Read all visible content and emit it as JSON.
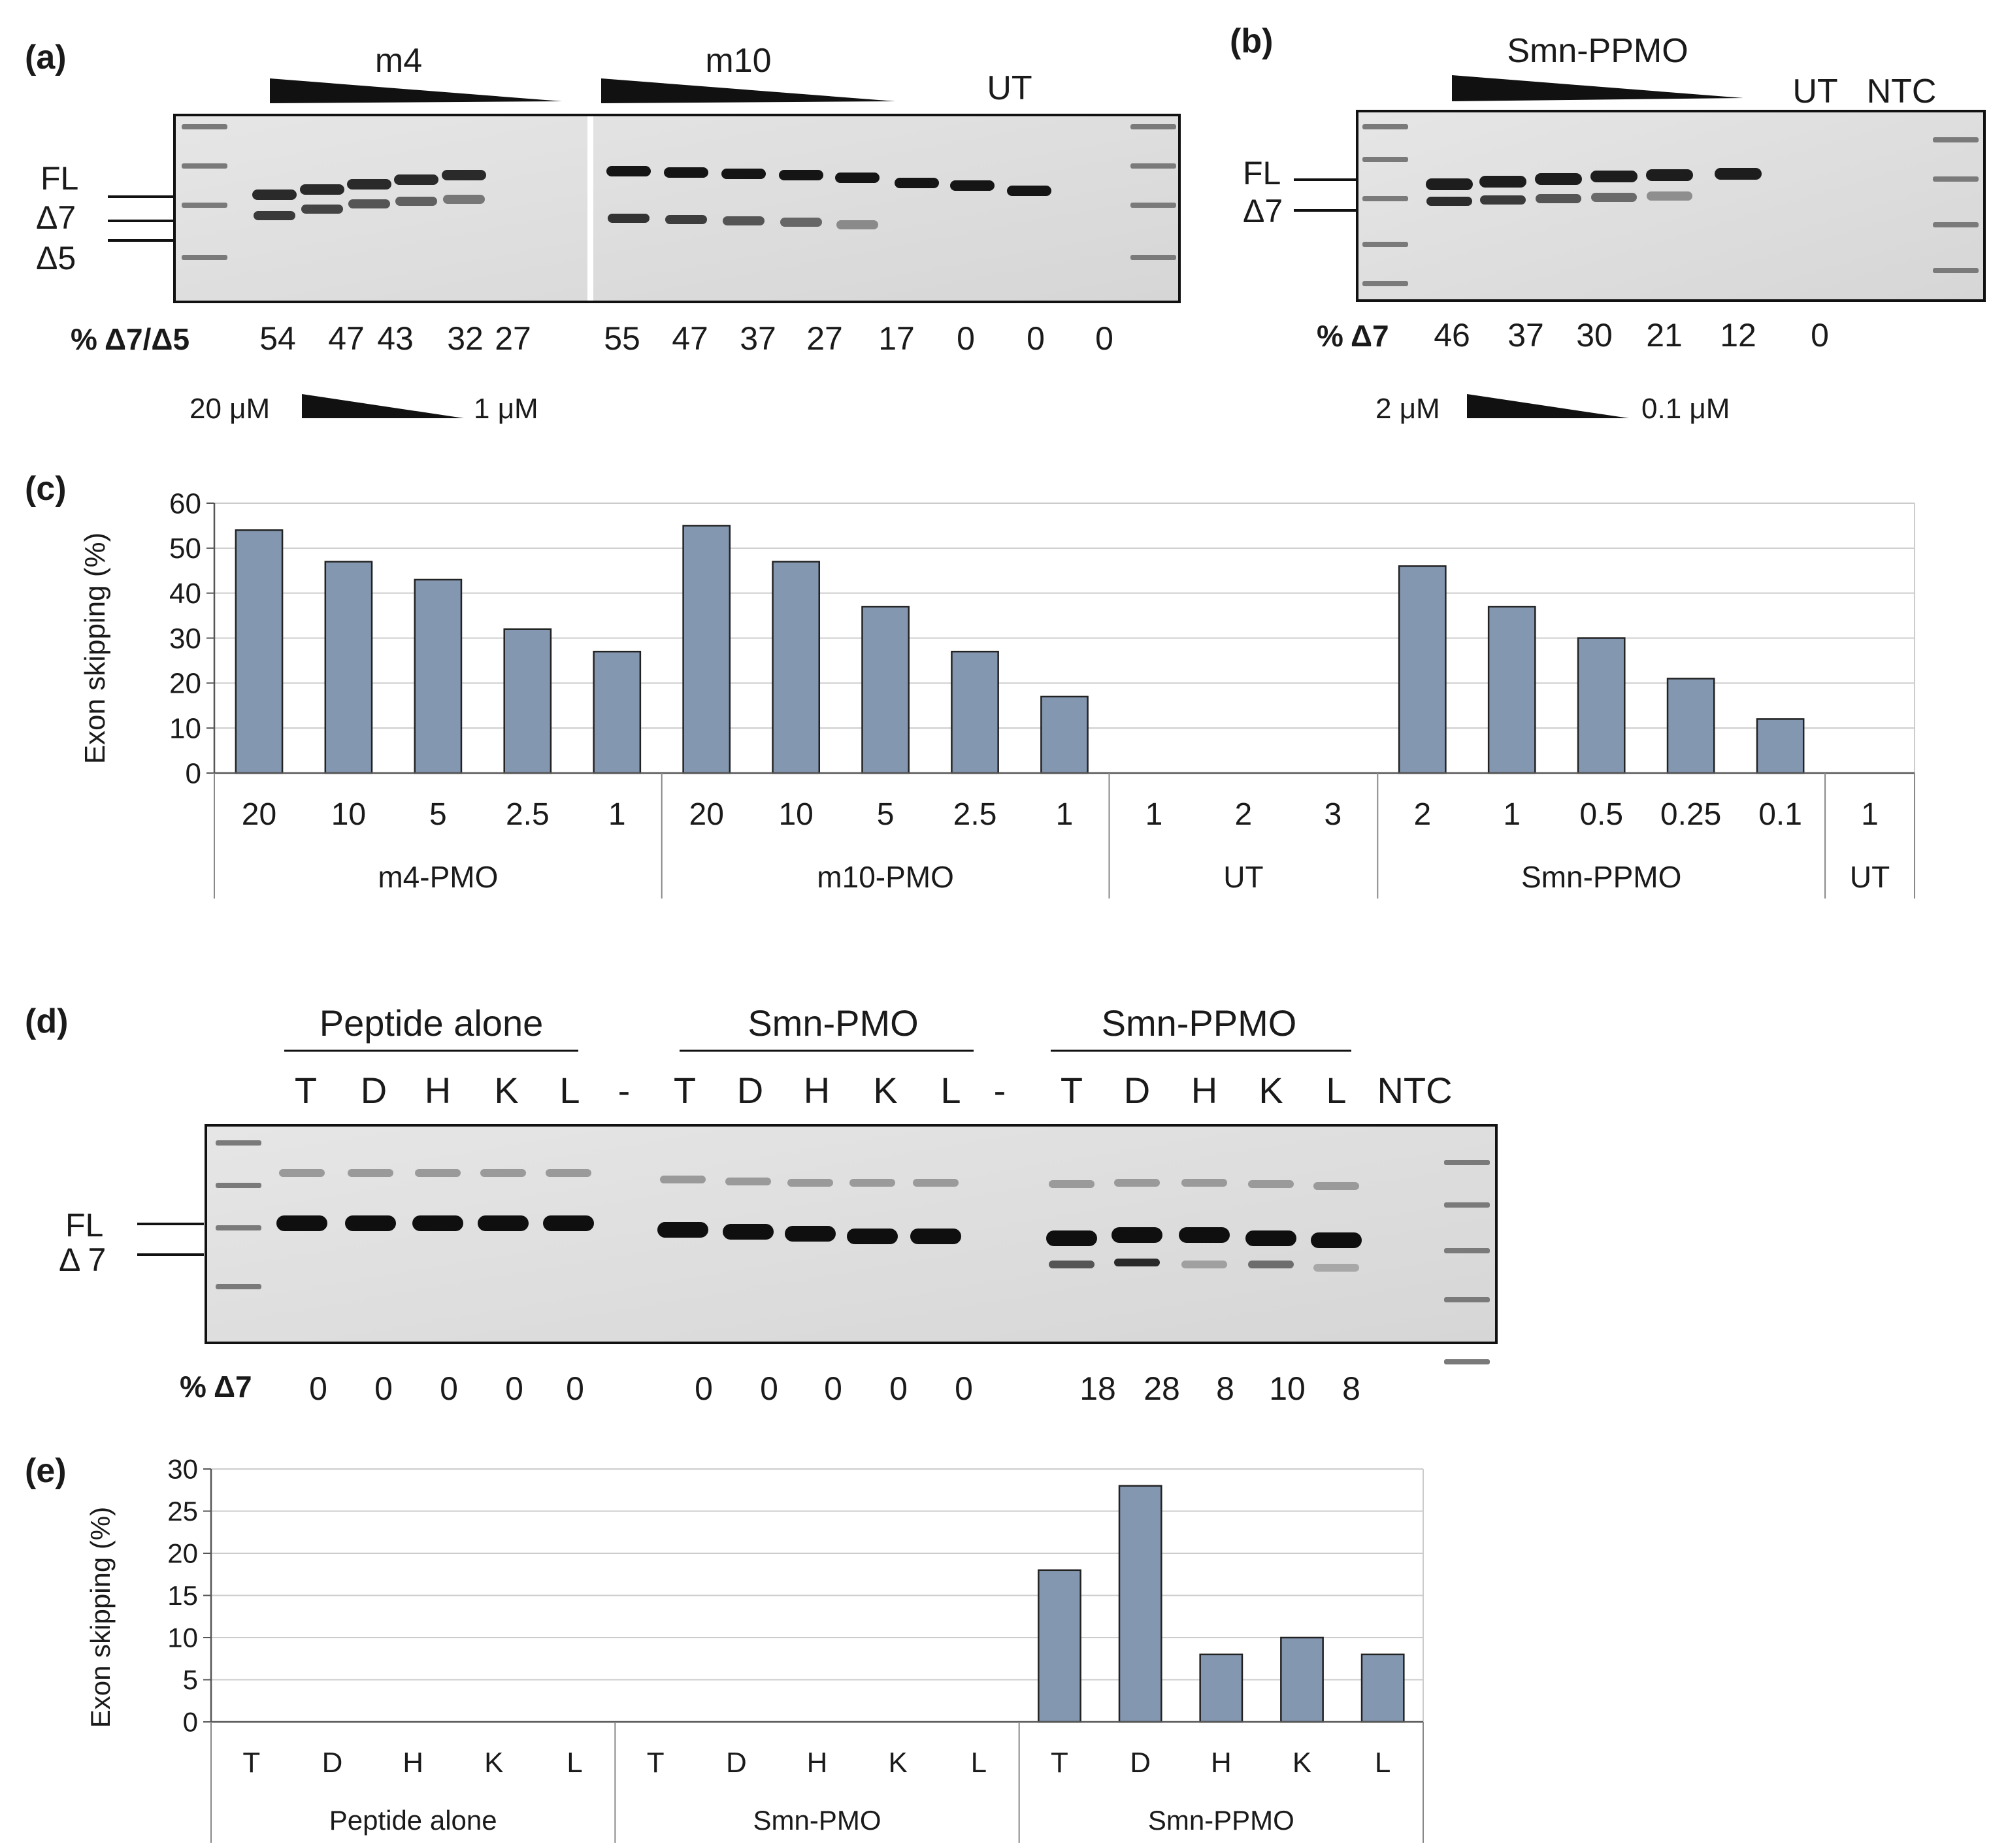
{
  "panel_a": {
    "label": "(a)",
    "group_m4": "m4",
    "group_m10": "m10",
    "group_ut": "UT",
    "band_fl": "FL",
    "band_d7": "Δ7",
    "band_d5": "Δ5",
    "pct_label": "% Δ7/Δ5",
    "pct_values": [
      "54",
      "47",
      "43",
      "32",
      "27",
      "55",
      "47",
      "37",
      "27",
      "17",
      "0",
      "0",
      "0"
    ],
    "dose_high": "20 μM",
    "dose_low": "1 μM"
  },
  "panel_b": {
    "label": "(b)",
    "group_smn": "Smn-PPMO",
    "group_ut": "UT",
    "group_ntc": "NTC",
    "band_fl": "FL",
    "band_d7": "Δ7",
    "pct_label": "% Δ7",
    "pct_values": [
      "46",
      "37",
      "30",
      "21",
      "12",
      "0"
    ],
    "dose_high": "2 μM",
    "dose_low": "0.1 μM"
  },
  "panel_d": {
    "label": "(d)",
    "group_peptide": "Peptide alone",
    "group_pmo": "Smn-PMO",
    "group_ppmo": "Smn-PPMO",
    "lanes": [
      "T",
      "D",
      "H",
      "K",
      "L",
      "-",
      "T",
      "D",
      "H",
      "K",
      "L",
      "-",
      "T",
      "D",
      "H",
      "K",
      "L"
    ],
    "ntc": "NTC",
    "band_fl": "FL",
    "band_d7": "Δ 7",
    "pct_label": "% Δ7",
    "pct_values": [
      "0",
      "0",
      "0",
      "0",
      "0",
      "0",
      "0",
      "0",
      "0",
      "0",
      "18",
      "28",
      "8",
      "10",
      "8"
    ]
  },
  "chart_data": [
    {
      "type": "bar",
      "panel_label": "(c)",
      "ylabel": "Exon skipping (%)",
      "ylim": [
        0,
        60
      ],
      "yticks": [
        "0",
        "10",
        "20",
        "30",
        "40",
        "50",
        "60"
      ],
      "grid": true,
      "categories": [
        "20",
        "10",
        "5",
        "2.5",
        "1",
        "20",
        "10",
        "5",
        "2.5",
        "1",
        "1",
        "2",
        "3",
        "2",
        "1",
        "0.5",
        "0.25",
        "0.1",
        "1"
      ],
      "groups": [
        {
          "name": "m4-PMO",
          "count": 5
        },
        {
          "name": "m10-PMO",
          "count": 5
        },
        {
          "name": "UT",
          "count": 3
        },
        {
          "name": "Smn-PPMO",
          "count": 5
        },
        {
          "name": "UT",
          "count": 1
        }
      ],
      "values": [
        54,
        47,
        43,
        32,
        27,
        55,
        47,
        37,
        27,
        17,
        0,
        0,
        0,
        46,
        37,
        30,
        21,
        12,
        0
      ],
      "bar_color": "#8497b0"
    },
    {
      "type": "bar",
      "panel_label": "(e)",
      "ylabel": "Exon skipping (%)",
      "ylim": [
        0,
        30
      ],
      "yticks": [
        "0",
        "5",
        "10",
        "15",
        "20",
        "25",
        "30"
      ],
      "grid": true,
      "categories": [
        "T",
        "D",
        "H",
        "K",
        "L",
        "T",
        "D",
        "H",
        "K",
        "L",
        "T",
        "D",
        "H",
        "K",
        "L"
      ],
      "groups": [
        {
          "name": "Peptide alone",
          "count": 5
        },
        {
          "name": "Smn-PMO",
          "count": 5
        },
        {
          "name": "Smn-PPMO",
          "count": 5
        }
      ],
      "values": [
        0,
        0,
        0,
        0,
        0,
        0,
        0,
        0,
        0,
        0,
        18,
        28,
        8,
        10,
        8
      ],
      "bar_color": "#8497b0"
    }
  ]
}
